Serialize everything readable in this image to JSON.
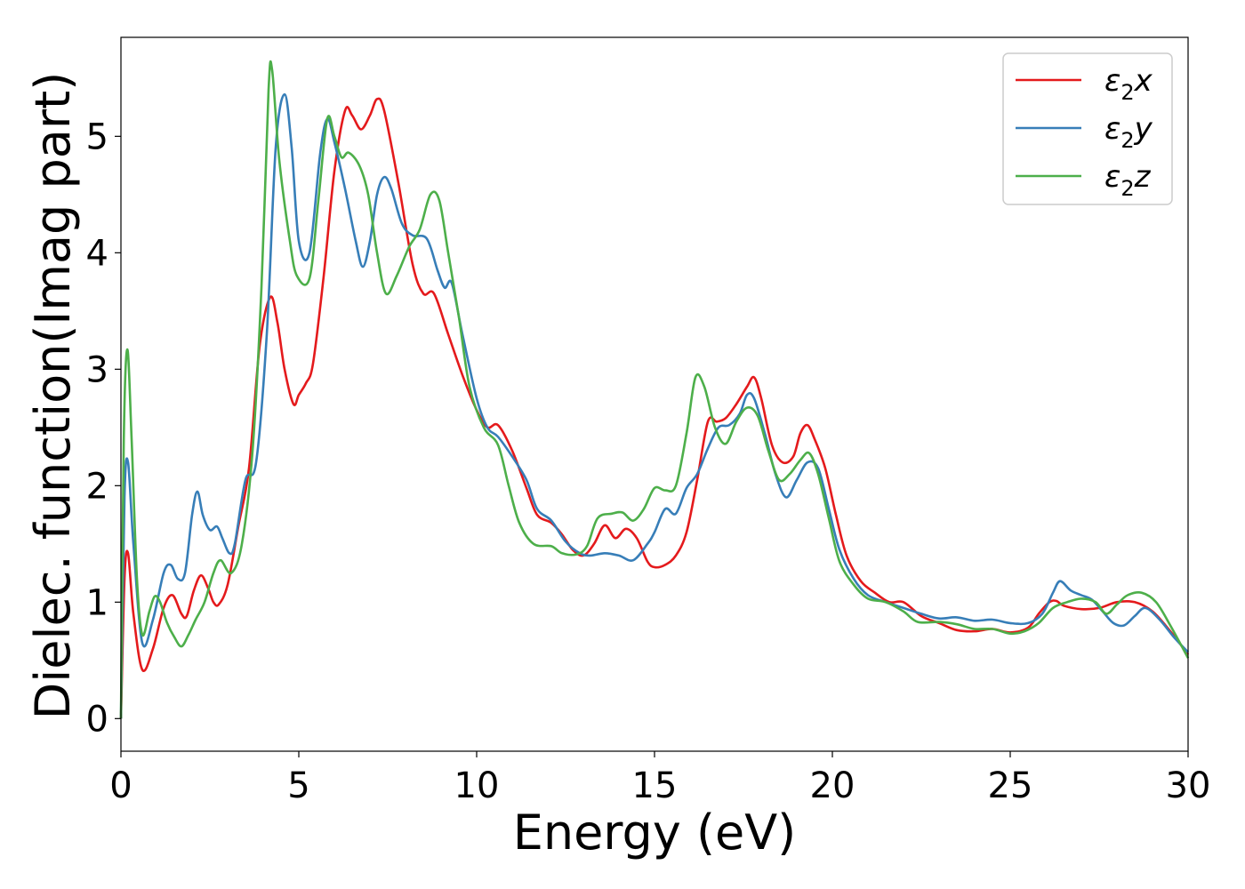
{
  "chart_data": {
    "type": "line",
    "title": "",
    "xlabel": "Energy (eV)",
    "ylabel": "Dielec. function(Imag part)",
    "xlim": [
      0,
      30
    ],
    "ylim": [
      -0.28,
      5.85
    ],
    "xticks": [
      0,
      5,
      10,
      15,
      20,
      25,
      30
    ],
    "yticks": [
      0,
      1,
      2,
      3,
      4,
      5
    ],
    "grid": false,
    "legend": "top-right",
    "series": [
      {
        "name": "ε₂x",
        "legend_main": "ε",
        "legend_sub": "2",
        "legend_tail": "x",
        "color": "#e41a1c",
        "points": [
          [
            0,
            0
          ],
          [
            0.1,
            1.2
          ],
          [
            0.2,
            1.42
          ],
          [
            0.35,
            0.9
          ],
          [
            0.6,
            0.42
          ],
          [
            0.9,
            0.6
          ],
          [
            1.2,
            0.95
          ],
          [
            1.45,
            1.06
          ],
          [
            1.7,
            0.9
          ],
          [
            1.85,
            0.88
          ],
          [
            2.05,
            1.1
          ],
          [
            2.25,
            1.23
          ],
          [
            2.45,
            1.12
          ],
          [
            2.6,
            1.0
          ],
          [
            2.75,
            0.98
          ],
          [
            3.0,
            1.15
          ],
          [
            3.3,
            1.65
          ],
          [
            3.6,
            2.15
          ],
          [
            3.9,
            3.2
          ],
          [
            4.2,
            3.62
          ],
          [
            4.4,
            3.4
          ],
          [
            4.6,
            3.0
          ],
          [
            4.85,
            2.7
          ],
          [
            5.0,
            2.78
          ],
          [
            5.2,
            2.88
          ],
          [
            5.4,
            3.05
          ],
          [
            5.7,
            3.8
          ],
          [
            6.0,
            4.7
          ],
          [
            6.3,
            5.22
          ],
          [
            6.5,
            5.18
          ],
          [
            6.75,
            5.06
          ],
          [
            7.0,
            5.18
          ],
          [
            7.2,
            5.32
          ],
          [
            7.4,
            5.22
          ],
          [
            7.8,
            4.6
          ],
          [
            8.2,
            3.9
          ],
          [
            8.5,
            3.65
          ],
          [
            8.8,
            3.65
          ],
          [
            9.2,
            3.3
          ],
          [
            9.6,
            2.95
          ],
          [
            10.0,
            2.65
          ],
          [
            10.3,
            2.5
          ],
          [
            10.6,
            2.52
          ],
          [
            11.0,
            2.3
          ],
          [
            11.4,
            1.98
          ],
          [
            11.7,
            1.75
          ],
          [
            12.1,
            1.68
          ],
          [
            12.4,
            1.58
          ],
          [
            12.7,
            1.45
          ],
          [
            13.0,
            1.4
          ],
          [
            13.3,
            1.5
          ],
          [
            13.6,
            1.66
          ],
          [
            13.9,
            1.55
          ],
          [
            14.2,
            1.63
          ],
          [
            14.5,
            1.55
          ],
          [
            14.8,
            1.35
          ],
          [
            15.0,
            1.3
          ],
          [
            15.3,
            1.32
          ],
          [
            15.6,
            1.4
          ],
          [
            15.9,
            1.6
          ],
          [
            16.2,
            2.05
          ],
          [
            16.5,
            2.55
          ],
          [
            16.75,
            2.55
          ],
          [
            17.0,
            2.58
          ],
          [
            17.3,
            2.7
          ],
          [
            17.6,
            2.85
          ],
          [
            17.8,
            2.93
          ],
          [
            18.0,
            2.75
          ],
          [
            18.3,
            2.35
          ],
          [
            18.6,
            2.2
          ],
          [
            18.9,
            2.25
          ],
          [
            19.1,
            2.45
          ],
          [
            19.3,
            2.52
          ],
          [
            19.5,
            2.4
          ],
          [
            19.8,
            2.15
          ],
          [
            20.1,
            1.75
          ],
          [
            20.4,
            1.4
          ],
          [
            20.8,
            1.18
          ],
          [
            21.2,
            1.08
          ],
          [
            21.6,
            1.0
          ],
          [
            22.0,
            1.0
          ],
          [
            22.5,
            0.88
          ],
          [
            23.0,
            0.82
          ],
          [
            23.5,
            0.76
          ],
          [
            24.0,
            0.75
          ],
          [
            24.5,
            0.77
          ],
          [
            25.0,
            0.74
          ],
          [
            25.5,
            0.78
          ],
          [
            25.8,
            0.9
          ],
          [
            26.1,
            1.0
          ],
          [
            26.3,
            1.01
          ],
          [
            26.5,
            0.97
          ],
          [
            27.0,
            0.94
          ],
          [
            27.5,
            0.95
          ],
          [
            28.0,
            1.0
          ],
          [
            28.5,
            1.0
          ],
          [
            29.0,
            0.92
          ],
          [
            29.5,
            0.75
          ],
          [
            30.0,
            0.55
          ]
        ]
      },
      {
        "name": "ε₂y",
        "legend_main": "ε",
        "legend_sub": "2",
        "legend_tail": "y",
        "color": "#377eb8",
        "points": [
          [
            0,
            0
          ],
          [
            0.1,
            1.9
          ],
          [
            0.2,
            2.2
          ],
          [
            0.35,
            1.5
          ],
          [
            0.6,
            0.65
          ],
          [
            0.9,
            0.85
          ],
          [
            1.2,
            1.25
          ],
          [
            1.4,
            1.32
          ],
          [
            1.6,
            1.2
          ],
          [
            1.8,
            1.25
          ],
          [
            2.0,
            1.75
          ],
          [
            2.15,
            1.95
          ],
          [
            2.3,
            1.75
          ],
          [
            2.5,
            1.62
          ],
          [
            2.7,
            1.65
          ],
          [
            2.85,
            1.55
          ],
          [
            3.05,
            1.42
          ],
          [
            3.2,
            1.5
          ],
          [
            3.5,
            2.05
          ],
          [
            3.8,
            2.2
          ],
          [
            4.1,
            3.3
          ],
          [
            4.35,
            4.9
          ],
          [
            4.6,
            5.36
          ],
          [
            4.8,
            4.9
          ],
          [
            5.0,
            4.1
          ],
          [
            5.3,
            4.0
          ],
          [
            5.6,
            4.85
          ],
          [
            5.8,
            5.15
          ],
          [
            6.0,
            4.95
          ],
          [
            6.3,
            4.55
          ],
          [
            6.6,
            4.1
          ],
          [
            6.8,
            3.88
          ],
          [
            7.0,
            4.1
          ],
          [
            7.2,
            4.5
          ],
          [
            7.4,
            4.65
          ],
          [
            7.6,
            4.55
          ],
          [
            7.9,
            4.25
          ],
          [
            8.2,
            4.15
          ],
          [
            8.6,
            4.12
          ],
          [
            8.9,
            3.85
          ],
          [
            9.1,
            3.7
          ],
          [
            9.3,
            3.74
          ],
          [
            9.6,
            3.3
          ],
          [
            10.0,
            2.75
          ],
          [
            10.3,
            2.5
          ],
          [
            10.6,
            2.42
          ],
          [
            11.0,
            2.25
          ],
          [
            11.4,
            2.05
          ],
          [
            11.7,
            1.8
          ],
          [
            12.1,
            1.7
          ],
          [
            12.5,
            1.52
          ],
          [
            12.9,
            1.42
          ],
          [
            13.2,
            1.4
          ],
          [
            13.6,
            1.42
          ],
          [
            14.0,
            1.4
          ],
          [
            14.4,
            1.36
          ],
          [
            14.8,
            1.5
          ],
          [
            15.0,
            1.6
          ],
          [
            15.3,
            1.8
          ],
          [
            15.6,
            1.76
          ],
          [
            15.9,
            1.98
          ],
          [
            16.2,
            2.1
          ],
          [
            16.5,
            2.32
          ],
          [
            16.8,
            2.5
          ],
          [
            17.1,
            2.52
          ],
          [
            17.4,
            2.62
          ],
          [
            17.6,
            2.78
          ],
          [
            17.8,
            2.75
          ],
          [
            18.1,
            2.45
          ],
          [
            18.4,
            2.1
          ],
          [
            18.7,
            1.9
          ],
          [
            19.0,
            2.05
          ],
          [
            19.3,
            2.2
          ],
          [
            19.6,
            2.15
          ],
          [
            19.9,
            1.8
          ],
          [
            20.2,
            1.45
          ],
          [
            20.6,
            1.2
          ],
          [
            21.0,
            1.06
          ],
          [
            21.5,
            1.0
          ],
          [
            22.0,
            0.95
          ],
          [
            22.5,
            0.9
          ],
          [
            23.0,
            0.86
          ],
          [
            23.5,
            0.87
          ],
          [
            24.0,
            0.84
          ],
          [
            24.5,
            0.85
          ],
          [
            25.0,
            0.82
          ],
          [
            25.5,
            0.82
          ],
          [
            25.9,
            0.9
          ],
          [
            26.2,
            1.08
          ],
          [
            26.4,
            1.18
          ],
          [
            26.7,
            1.1
          ],
          [
            27.0,
            1.06
          ],
          [
            27.3,
            1.02
          ],
          [
            27.6,
            0.92
          ],
          [
            27.9,
            0.82
          ],
          [
            28.2,
            0.8
          ],
          [
            28.5,
            0.88
          ],
          [
            28.8,
            0.95
          ],
          [
            29.2,
            0.85
          ],
          [
            29.6,
            0.7
          ],
          [
            30.0,
            0.57
          ]
        ]
      },
      {
        "name": "ε₂z",
        "legend_main": "ε",
        "legend_sub": "2",
        "legend_tail": "z",
        "color": "#4daf4a",
        "points": [
          [
            0,
            0
          ],
          [
            0.08,
            2.4
          ],
          [
            0.18,
            3.17
          ],
          [
            0.3,
            2.4
          ],
          [
            0.45,
            1.2
          ],
          [
            0.6,
            0.72
          ],
          [
            0.8,
            0.92
          ],
          [
            0.95,
            1.05
          ],
          [
            1.1,
            1.0
          ],
          [
            1.3,
            0.82
          ],
          [
            1.5,
            0.7
          ],
          [
            1.7,
            0.62
          ],
          [
            1.9,
            0.72
          ],
          [
            2.1,
            0.85
          ],
          [
            2.35,
            1.0
          ],
          [
            2.6,
            1.25
          ],
          [
            2.8,
            1.36
          ],
          [
            3.1,
            1.25
          ],
          [
            3.4,
            1.5
          ],
          [
            3.7,
            2.3
          ],
          [
            3.95,
            3.7
          ],
          [
            4.15,
            5.4
          ],
          [
            4.25,
            5.57
          ],
          [
            4.45,
            4.8
          ],
          [
            4.75,
            4.1
          ],
          [
            4.95,
            3.8
          ],
          [
            5.3,
            3.78
          ],
          [
            5.55,
            4.45
          ],
          [
            5.8,
            5.15
          ],
          [
            6.0,
            5.0
          ],
          [
            6.2,
            4.82
          ],
          [
            6.4,
            4.86
          ],
          [
            6.7,
            4.75
          ],
          [
            6.95,
            4.5
          ],
          [
            7.2,
            4.0
          ],
          [
            7.45,
            3.65
          ],
          [
            7.75,
            3.8
          ],
          [
            8.1,
            4.05
          ],
          [
            8.4,
            4.2
          ],
          [
            8.7,
            4.5
          ],
          [
            8.95,
            4.45
          ],
          [
            9.2,
            4.0
          ],
          [
            9.5,
            3.45
          ],
          [
            9.8,
            2.85
          ],
          [
            10.2,
            2.5
          ],
          [
            10.6,
            2.35
          ],
          [
            10.9,
            2.0
          ],
          [
            11.2,
            1.68
          ],
          [
            11.6,
            1.5
          ],
          [
            12.1,
            1.48
          ],
          [
            12.4,
            1.42
          ],
          [
            12.8,
            1.41
          ],
          [
            13.1,
            1.48
          ],
          [
            13.4,
            1.72
          ],
          [
            13.8,
            1.76
          ],
          [
            14.1,
            1.77
          ],
          [
            14.4,
            1.7
          ],
          [
            14.7,
            1.8
          ],
          [
            15.0,
            1.98
          ],
          [
            15.3,
            1.96
          ],
          [
            15.6,
            2.0
          ],
          [
            15.9,
            2.45
          ],
          [
            16.15,
            2.93
          ],
          [
            16.4,
            2.85
          ],
          [
            16.7,
            2.5
          ],
          [
            17.0,
            2.36
          ],
          [
            17.3,
            2.55
          ],
          [
            17.6,
            2.67
          ],
          [
            17.9,
            2.6
          ],
          [
            18.2,
            2.3
          ],
          [
            18.5,
            2.05
          ],
          [
            18.8,
            2.1
          ],
          [
            19.1,
            2.22
          ],
          [
            19.35,
            2.28
          ],
          [
            19.6,
            2.1
          ],
          [
            19.9,
            1.72
          ],
          [
            20.2,
            1.35
          ],
          [
            20.6,
            1.15
          ],
          [
            21.0,
            1.03
          ],
          [
            21.5,
            1.0
          ],
          [
            22.0,
            0.92
          ],
          [
            22.4,
            0.83
          ],
          [
            23.0,
            0.83
          ],
          [
            23.5,
            0.81
          ],
          [
            24.0,
            0.77
          ],
          [
            24.5,
            0.77
          ],
          [
            25.0,
            0.73
          ],
          [
            25.4,
            0.75
          ],
          [
            25.8,
            0.82
          ],
          [
            26.2,
            0.95
          ],
          [
            26.6,
            1.0
          ],
          [
            27.0,
            1.03
          ],
          [
            27.4,
            1.0
          ],
          [
            27.7,
            0.9
          ],
          [
            28.0,
            0.98
          ],
          [
            28.3,
            1.06
          ],
          [
            28.7,
            1.08
          ],
          [
            29.1,
            1.0
          ],
          [
            29.5,
            0.8
          ],
          [
            30.0,
            0.52
          ]
        ]
      }
    ]
  }
}
